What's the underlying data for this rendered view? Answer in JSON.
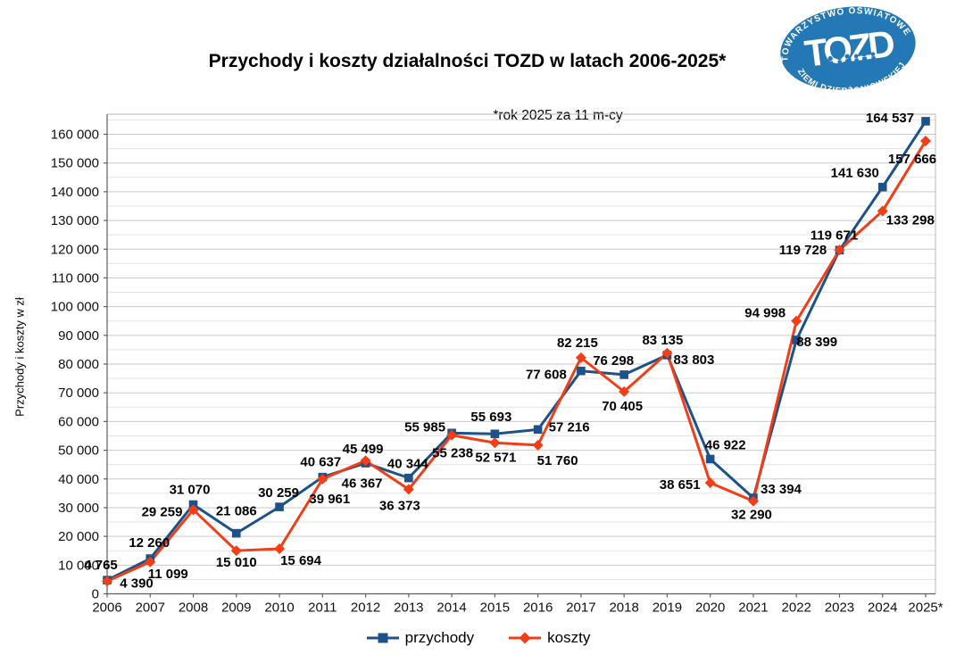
{
  "logo": {
    "top_text": "TOWARZYSTWO OŚWIATOWE",
    "center_text": "TOZD",
    "bottom_text": "ZIEMI DZIERŻONIOWSKIEJ",
    "bg_color": "#2478b6",
    "text_color": "#ffffff"
  },
  "chart_data": {
    "type": "line",
    "title": "Przychody i koszty działalności TOZD w latach 2006-2025*",
    "subtitle": "*rok 2025 za 11 m-cy",
    "ylabel": "Przychody i koszty w zł",
    "xlabel": "",
    "x_categories": [
      "2006",
      "2007",
      "2008",
      "2009",
      "2010",
      "2011",
      "2012",
      "2013",
      "2014",
      "2015",
      "2016",
      "2017",
      "2018",
      "2019",
      "2020",
      "2021",
      "2022",
      "2023",
      "2024",
      "2025*"
    ],
    "series": [
      {
        "name": "przychody",
        "color": "#1c5289",
        "marker": "square",
        "values": [
          4765,
          12260,
          31070,
          21086,
          30259,
          40637,
          45499,
          40344,
          55985,
          55693,
          57216,
          77608,
          76298,
          83135,
          46922,
          33394,
          88399,
          119671,
          141630,
          164537
        ]
      },
      {
        "name": "koszty",
        "color": "#f23d16",
        "marker": "diamond",
        "values": [
          4390,
          11099,
          29259,
          15010,
          15694,
          39961,
          46367,
          36373,
          55238,
          52571,
          51760,
          82215,
          70405,
          83803,
          38651,
          32290,
          94998,
          119728,
          133298,
          157666
        ]
      }
    ],
    "ylim": [
      0,
      160000
    ],
    "ytick_major": 10000,
    "ytick_minor": 5000,
    "grid": true,
    "data_labels": true,
    "number_format": "space-thousands",
    "legend_position": "bottom"
  }
}
